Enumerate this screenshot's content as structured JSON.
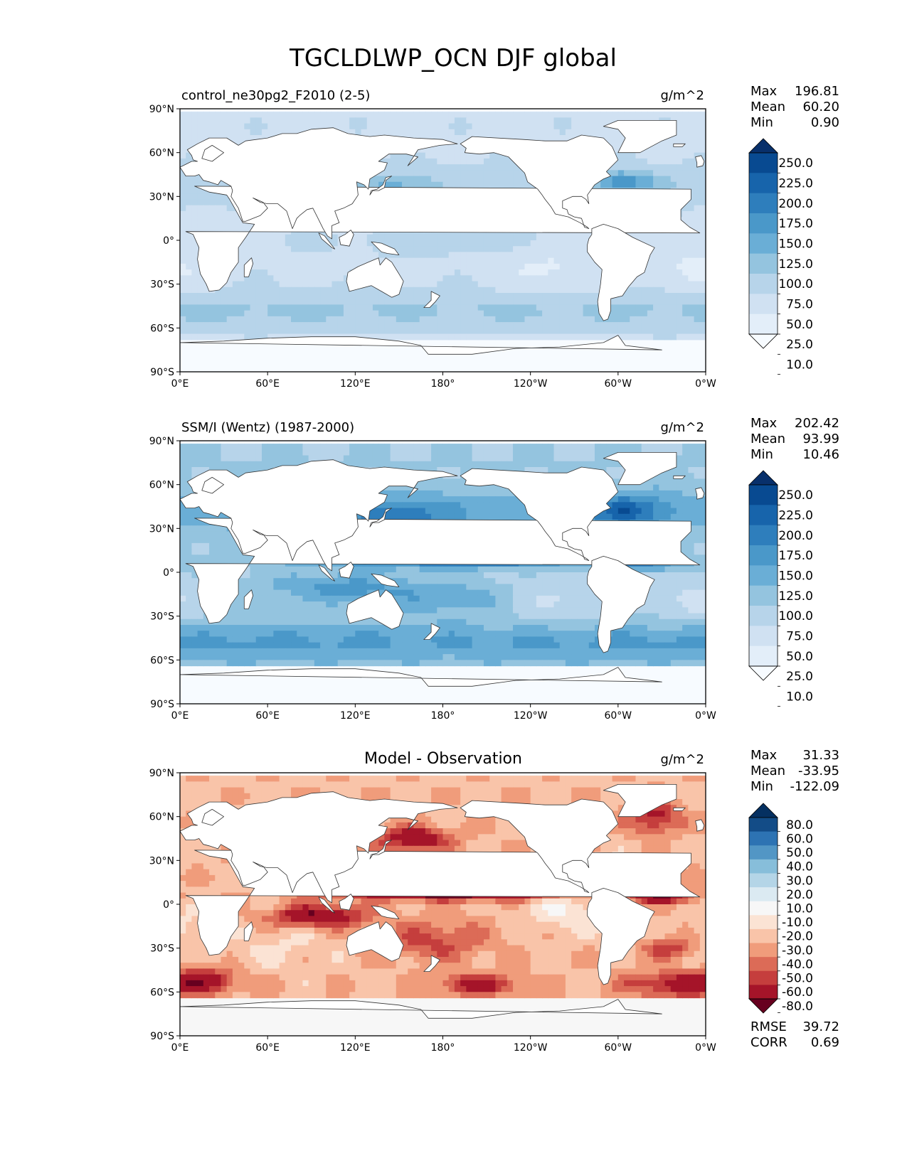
{
  "figure": {
    "title": "TGCLDLWP_OCN DJF global"
  },
  "lat_ticks": [
    "90°N",
    "60°N",
    "30°N",
    "0°",
    "30°S",
    "60°S",
    "90°S"
  ],
  "lon_ticks": [
    "0°E",
    "60°E",
    "120°E",
    "180°",
    "120°W",
    "60°W",
    "0°W"
  ],
  "colors": {
    "blues": [
      "#f7fbff",
      "#e3eef9",
      "#d0e1f2",
      "#b7d4ea",
      "#94c4df",
      "#6aaed6",
      "#4a98c9",
      "#2e7ebc",
      "#1764ab",
      "#084a91",
      "#08306b"
    ],
    "diff": [
      "#67001f",
      "#a51429",
      "#c53e3d",
      "#dc6b57",
      "#f09c7b",
      "#f9c4a9",
      "#fbe3d4",
      "#f7f7f7",
      "#dbeaf2",
      "#b4d5e7",
      "#87beda",
      "#5296c5",
      "#2d73b3",
      "#134c87",
      "#053061"
    ],
    "land": "#ffffff",
    "coast": "#333333"
  },
  "chart_data": [
    {
      "type": "contour-map",
      "title": "control_ne30pg2_F2010 (2-5)",
      "units": "g/m^2",
      "stats": [
        {
          "label": "Max",
          "value": "196.81"
        },
        {
          "label": "Mean",
          "value": "60.20"
        },
        {
          "label": "Min",
          "value": "0.90"
        }
      ],
      "colorbar": {
        "levels": [
          "250.0",
          "225.0",
          "200.0",
          "175.0",
          "150.0",
          "125.0",
          "100.0",
          "75.0",
          "50.0",
          "25.0",
          "10.0"
        ],
        "palette": "blues"
      },
      "field": {
        "kind": "model"
      }
    },
    {
      "type": "contour-map",
      "title": "SSM/I (Wentz) (1987-2000)",
      "units": "g/m^2",
      "stats": [
        {
          "label": "Max",
          "value": "202.42"
        },
        {
          "label": "Mean",
          "value": "93.99"
        },
        {
          "label": "Min",
          "value": "10.46"
        }
      ],
      "colorbar": {
        "levels": [
          "250.0",
          "225.0",
          "200.0",
          "175.0",
          "150.0",
          "125.0",
          "100.0",
          "75.0",
          "50.0",
          "25.0",
          "10.0"
        ],
        "palette": "blues"
      },
      "field": {
        "kind": "obs"
      }
    },
    {
      "type": "contour-map",
      "title": "Model - Observation",
      "units": "g/m^2",
      "stats": [
        {
          "label": "Max",
          "value": "31.33"
        },
        {
          "label": "Mean",
          "value": "-33.95"
        },
        {
          "label": "Min",
          "value": "-122.09"
        }
      ],
      "colorbar": {
        "levels": [
          "80.0",
          "60.0",
          "50.0",
          "40.0",
          "30.0",
          "20.0",
          "10.0",
          "-10.0",
          "-20.0",
          "-30.0",
          "-40.0",
          "-50.0",
          "-60.0",
          "-80.0"
        ],
        "palette": "diff"
      },
      "metrics": [
        {
          "label": "RMSE",
          "value": "39.72"
        },
        {
          "label": "CORR",
          "value": "0.69"
        }
      ],
      "field": {
        "kind": "diff"
      }
    }
  ]
}
